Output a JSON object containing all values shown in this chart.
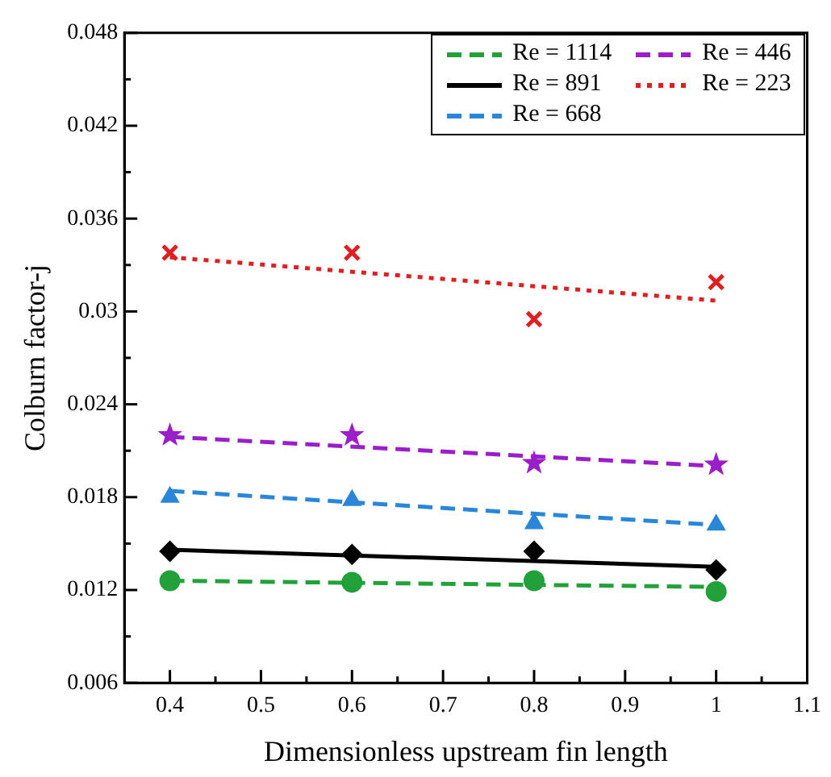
{
  "chart_data": {
    "type": "line",
    "xlabel": "Dimensionless upstream fin length",
    "ylabel": "Colburn factor-j",
    "xlim": [
      0.35,
      1.1
    ],
    "ylim": [
      0.006,
      0.048
    ],
    "xticks": [
      0.4,
      {
        "value": 0.45,
        "label": null
      },
      0.5,
      {
        "value": 0.55,
        "label": null
      },
      0.6,
      {
        "value": 0.65,
        "label": null
      },
      0.7,
      {
        "value": 0.75,
        "label": null
      },
      0.8,
      {
        "value": 0.85,
        "label": null
      },
      0.9,
      {
        "value": 0.95,
        "label": null
      },
      1,
      {
        "value": 1.05,
        "label": null
      },
      1.1
    ],
    "yticks": [
      0.006,
      {
        "value": 0.009,
        "label": null
      },
      0.012,
      {
        "value": 0.015,
        "label": null
      },
      0.018,
      {
        "value": 0.021,
        "label": null
      },
      0.024,
      {
        "value": 0.027,
        "label": null
      },
      0.03,
      {
        "value": 0.033,
        "label": null
      },
      0.036,
      {
        "value": 0.039,
        "label": null
      },
      0.042,
      {
        "value": 0.045,
        "label": null
      },
      0.048
    ],
    "grid": false,
    "legend": "top right",
    "series": [
      {
        "name": "Re = 1114",
        "type": "line",
        "color": "#22a03a",
        "line_style": "dashed",
        "marker": "none",
        "x": [
          0.4,
          1
        ],
        "values": [
          0.0126,
          0.0122
        ]
      },
      {
        "name": "Re = 446",
        "type": "line",
        "color": "#9a1fc8",
        "line_style": "dashed",
        "marker": "none",
        "x": [
          0.4,
          1
        ],
        "values": [
          0.0219,
          0.02
        ]
      },
      {
        "name": "Re = 891",
        "type": "line",
        "color": "#000000",
        "line_style": "solid",
        "marker": "none",
        "x": [
          0.4,
          1
        ],
        "values": [
          0.0146,
          0.0135
        ]
      },
      {
        "name": "Re = 223",
        "type": "line",
        "color": "#e02020",
        "line_style": "dotted",
        "marker": "none",
        "x": [
          0.4,
          1
        ],
        "values": [
          0.0335,
          0.0307
        ]
      },
      {
        "name": "Re = 668",
        "type": "line",
        "color": "#2a86d8",
        "line_style": "dashed",
        "marker": "none",
        "x": [
          0.4,
          1
        ],
        "values": [
          0.0184,
          0.0162
        ]
      },
      {
        "type": "scatter",
        "color": "#22a03a",
        "marker": "circle",
        "x": [
          0.4,
          0.6,
          0.8,
          1
        ],
        "values": [
          0.0126,
          0.0125,
          0.0126,
          0.0119
        ]
      },
      {
        "type": "scatter",
        "color": "#9a1fc8",
        "marker": "star",
        "x": [
          0.4,
          0.6,
          0.8,
          1
        ],
        "values": [
          0.022,
          0.022,
          0.0202,
          0.0201
        ]
      },
      {
        "type": "scatter",
        "color": "#000000",
        "marker": "diamond",
        "x": [
          0.4,
          0.6,
          0.8,
          1
        ],
        "values": [
          0.0145,
          0.0143,
          0.0145,
          0.0133
        ]
      },
      {
        "type": "scatter",
        "color": "#e02020",
        "marker": "cross",
        "x": [
          0.4,
          0.6,
          0.8,
          1
        ],
        "values": [
          0.0338,
          0.0338,
          0.0295,
          0.0319
        ]
      },
      {
        "type": "scatter",
        "color": "#2a86d8",
        "marker": "triangle",
        "x": [
          0.4,
          0.6,
          0.8,
          1
        ],
        "values": [
          0.018,
          0.0178,
          0.0163,
          0.0162
        ]
      }
    ]
  }
}
